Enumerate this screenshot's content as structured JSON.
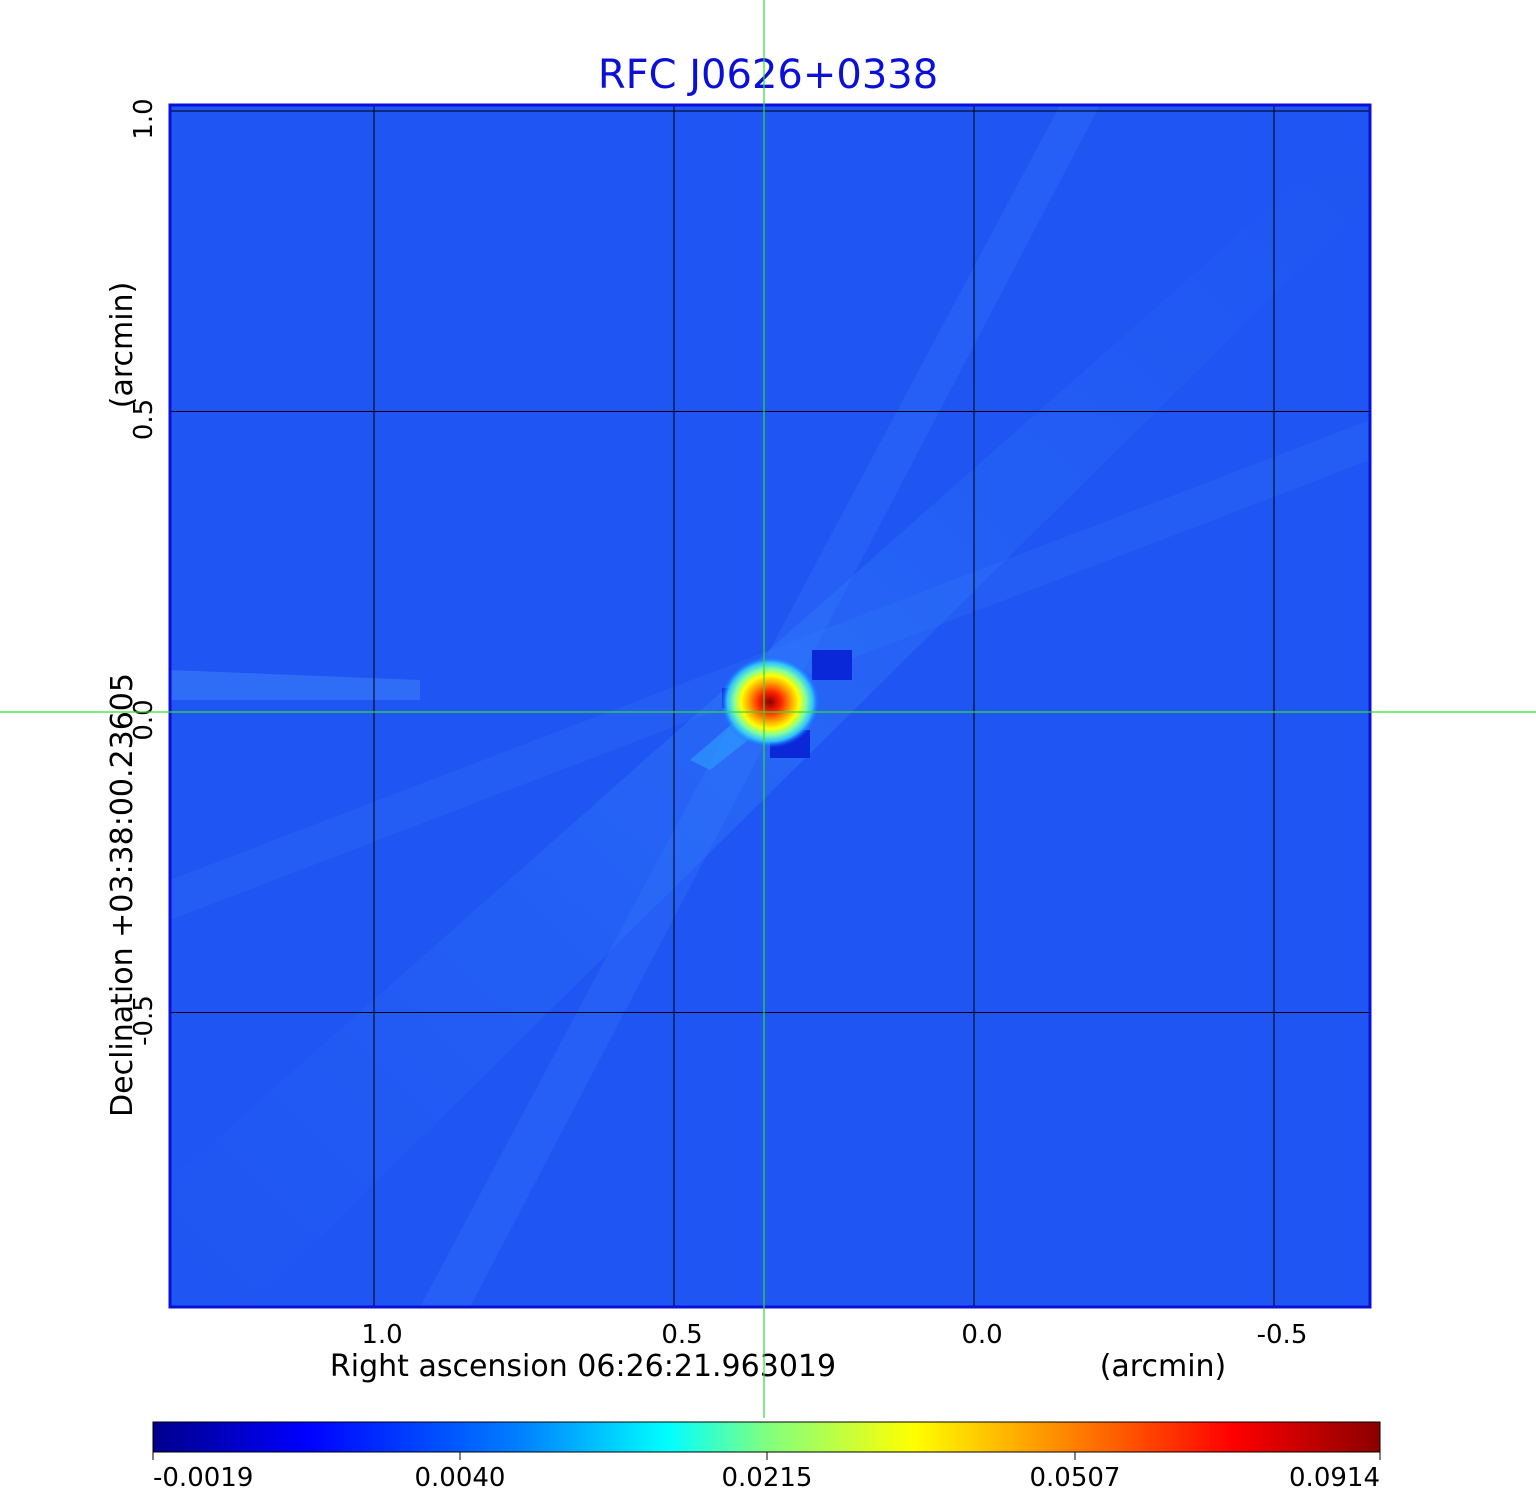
{
  "chart_data": {
    "type": "heatmap",
    "title": "RFC J0626+0338",
    "title_color": "#0a10d8",
    "xlabel": "Right ascension  06:26:21.963019",
    "xunit": "(arcmin)",
    "ylabel": "Declination  +03:38:00.23605",
    "yunit": "(arcmin)",
    "xlim": [
      1.34,
      -0.66
    ],
    "ylim": [
      -0.99,
      1.01
    ],
    "x_ticks": [
      1.0,
      0.5,
      0.0,
      -0.5
    ],
    "x_tick_labels": [
      "1.0",
      "0.5",
      "0.0",
      "-0.5"
    ],
    "y_ticks": [
      -0.5,
      0.0,
      0.5,
      1.0
    ],
    "y_tick_labels": [
      "-0.5",
      "0.0",
      "0.5",
      "1.0"
    ],
    "grid": true,
    "crosshair": {
      "x": 0.35,
      "y": 0.0,
      "color": "#33dd33"
    },
    "source_peak": {
      "x": 0.34,
      "y": 0.02,
      "value": 0.0914
    },
    "colormap": "jet",
    "colorbar": {
      "ticks": [
        -0.0019,
        0.004,
        0.0215,
        0.0507,
        0.0914
      ],
      "tick_labels": [
        "-0.0019",
        "0.0040",
        "0.0215",
        "0.0507",
        "0.0914"
      ],
      "colors": [
        "#00008b",
        "#0000ff",
        "#0080ff",
        "#00ffff",
        "#80ff80",
        "#ffff00",
        "#ff8000",
        "#ff0000",
        "#8b0000"
      ]
    }
  }
}
